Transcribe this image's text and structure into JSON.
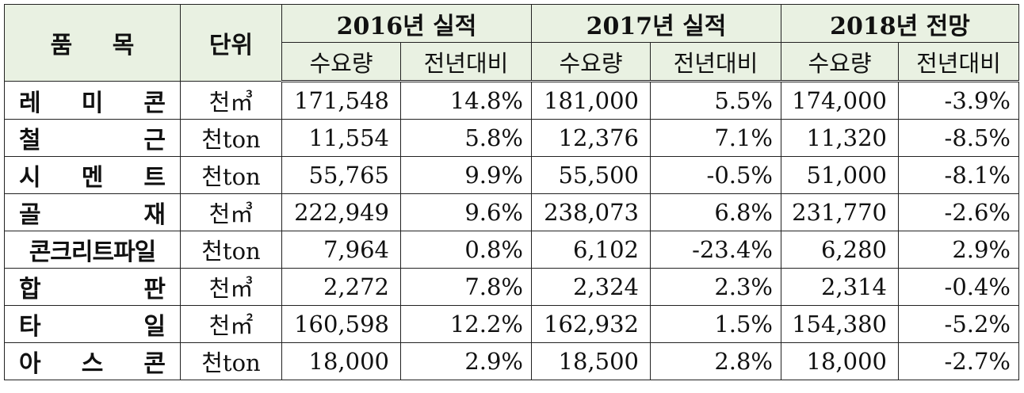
{
  "header": {
    "item": "품  목",
    "unit": "단위",
    "years": [
      "2016년 실적",
      "2017년 실적",
      "2018년 전망"
    ],
    "sub": [
      "수요량",
      "전년대비",
      "수요량",
      "전년대비",
      "수요량",
      "전년대비"
    ]
  },
  "rows": [
    {
      "item": "레 미 콘",
      "unit": "천㎥",
      "v2016": "171,548",
      "p2016": "14.8%",
      "v2017": "181,000",
      "p2017": "5.5%",
      "v2018": "174,000",
      "p2018": "-3.9%"
    },
    {
      "item": "철 근",
      "unit": "천ton",
      "v2016": "11,554",
      "p2016": "5.8%",
      "v2017": "12,376",
      "p2017": "7.1%",
      "v2018": "11,320",
      "p2018": "-8.5%"
    },
    {
      "item": "시 멘 트",
      "unit": "천ton",
      "v2016": "55,765",
      "p2016": "9.9%",
      "v2017": "55,500",
      "p2017": "-0.5%",
      "v2018": "51,000",
      "p2018": "-8.1%"
    },
    {
      "item": "골 재",
      "unit": "천㎥",
      "v2016": "222,949",
      "p2016": "9.6%",
      "v2017": "238,073",
      "p2017": "6.8%",
      "v2018": "231,770",
      "p2018": "-2.6%"
    },
    {
      "item": "콘크리트파일",
      "unit": "천ton",
      "v2016": "7,964",
      "p2016": "0.8%",
      "v2017": "6,102",
      "p2017": "-23.4%",
      "v2018": "6,280",
      "p2018": "2.9%"
    },
    {
      "item": "합 판",
      "unit": "천㎥",
      "v2016": "2,272",
      "p2016": "7.8%",
      "v2017": "2,324",
      "p2017": "2.3%",
      "v2018": "2,314",
      "p2018": "-0.4%"
    },
    {
      "item": "타 일",
      "unit": "천㎡",
      "v2016": "160,598",
      "p2016": "12.2%",
      "v2017": "162,932",
      "p2017": "1.5%",
      "v2018": "154,380",
      "p2018": "-5.2%"
    },
    {
      "item": "아 스 콘",
      "unit": "천ton",
      "v2016": "18,000",
      "p2016": "2.9%",
      "v2017": "18,500",
      "p2017": "2.8%",
      "v2018": "18,000",
      "p2018": "-2.7%"
    }
  ]
}
